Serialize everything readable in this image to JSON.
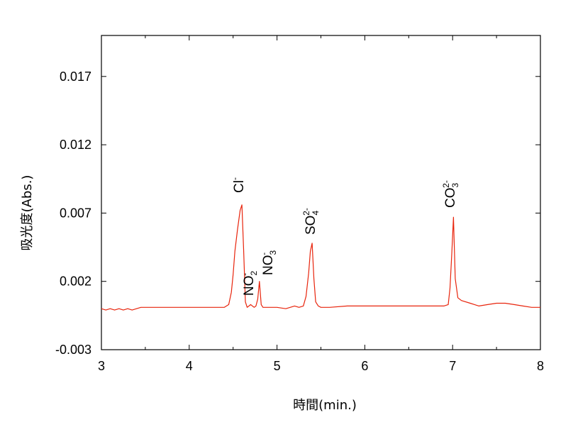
{
  "chart_data": {
    "type": "line",
    "xlabel": "時間(min.)",
    "ylabel": "吸光度(Abs.)",
    "xlim": [
      3,
      8
    ],
    "ylim": [
      -0.003,
      0.02
    ],
    "x_ticks": [
      3,
      4,
      5,
      6,
      7,
      8
    ],
    "x_tick_labels": [
      "3",
      "4",
      "5",
      "6",
      "7",
      "8"
    ],
    "y_ticks": [
      -0.003,
      0.002,
      0.007,
      0.012,
      0.017
    ],
    "y_tick_labels": [
      "-0.003",
      "0.002",
      "0.007",
      "0.012",
      "0.017"
    ],
    "grid": false,
    "line_color": "#e8240c",
    "series": [
      {
        "x": [
          3.0,
          3.05,
          3.1,
          3.15,
          3.2,
          3.25,
          3.3,
          3.35,
          3.4,
          3.45,
          3.5,
          3.6,
          3.7,
          3.8,
          3.9,
          4.0,
          4.1,
          4.2,
          4.3,
          4.4,
          4.45,
          4.48,
          4.5,
          4.52,
          4.55,
          4.58,
          4.6,
          4.62,
          4.64,
          4.66,
          4.68,
          4.7,
          4.72,
          4.74,
          4.76,
          4.78,
          4.8,
          4.82,
          4.84,
          4.86,
          4.9,
          5.0,
          5.1,
          5.2,
          5.25,
          5.3,
          5.33,
          5.36,
          5.38,
          5.4,
          5.42,
          5.44,
          5.47,
          5.5,
          5.6,
          5.8,
          6.0,
          6.2,
          6.4,
          6.6,
          6.8,
          6.9,
          6.95,
          6.97,
          6.99,
          7.01,
          7.03,
          7.06,
          7.1,
          7.2,
          7.25,
          7.3,
          7.4,
          7.5,
          7.6,
          7.7,
          7.8,
          7.9,
          8.0
        ],
        "y": [
          0.0,
          -0.0001,
          0.0,
          -0.0001,
          0.0,
          -0.0001,
          0.0,
          -0.0001,
          0.0,
          0.0001,
          0.0001,
          0.0001,
          0.0001,
          0.0001,
          0.0001,
          0.0001,
          0.0001,
          0.0001,
          0.0001,
          0.0001,
          0.0003,
          0.0012,
          0.0025,
          0.0042,
          0.0058,
          0.0072,
          0.0076,
          0.0042,
          0.0005,
          0.0001,
          0.0002,
          0.0003,
          0.0002,
          0.0001,
          0.0002,
          0.0007,
          0.002,
          0.0003,
          0.0001,
          0.0001,
          0.0001,
          0.0001,
          0.0,
          0.0002,
          0.0001,
          0.0002,
          0.0009,
          0.0026,
          0.0042,
          0.0048,
          0.0022,
          0.0005,
          0.0002,
          0.0001,
          0.0001,
          0.0002,
          0.0002,
          0.0002,
          0.0002,
          0.0002,
          0.0002,
          0.0002,
          0.0003,
          0.0015,
          0.004,
          0.0067,
          0.0022,
          0.0008,
          0.0006,
          0.0004,
          0.0003,
          0.0002,
          0.0003,
          0.0004,
          0.0004,
          0.0003,
          0.0002,
          0.0001,
          0.0001
        ]
      }
    ],
    "annotations": [
      {
        "base": "Cl",
        "sup": "-",
        "sub": ""
      },
      {
        "base": "NO",
        "sup": "-",
        "sub": "2"
      },
      {
        "base": "NO",
        "sup": "-",
        "sub": "3"
      },
      {
        "base": "SO",
        "sup": "2-",
        "sub": "4"
      },
      {
        "base": "CO",
        "sup": "2-",
        "sub": "3"
      }
    ]
  }
}
